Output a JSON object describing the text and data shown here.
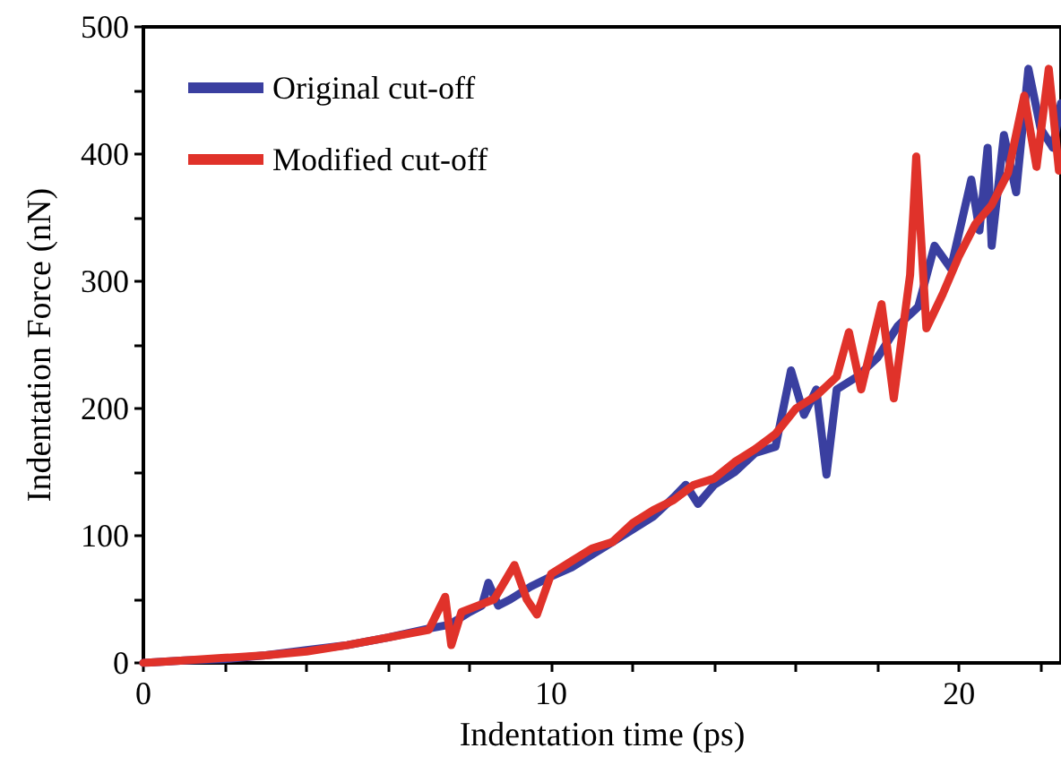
{
  "chart_data": {
    "type": "line",
    "xlabel": "Indentation time (ps)",
    "ylabel": "Indentation Force (nN)",
    "xlim": [
      0,
      22.5
    ],
    "xticks": [
      0,
      {
        "value": 2,
        "label": null
      },
      {
        "value": 4,
        "label": null
      },
      {
        "value": 6,
        "label": null
      },
      {
        "value": 8,
        "label": null
      },
      10,
      {
        "value": 12,
        "label": null
      },
      {
        "value": 14,
        "label": null
      },
      {
        "value": 16,
        "label": null
      },
      {
        "value": 18,
        "label": null
      },
      20,
      {
        "value": 22,
        "label": null
      }
    ],
    "ylim": [
      0,
      500
    ],
    "yticks": [
      0,
      {
        "value": 50,
        "label": null
      },
      100,
      {
        "value": 150,
        "label": null
      },
      200,
      {
        "value": 250,
        "label": null
      },
      300,
      {
        "value": 350,
        "label": null
      },
      400,
      {
        "value": 450,
        "label": null
      },
      500
    ],
    "grid": false,
    "legend": "top left",
    "marker": "none",
    "line_style": "solid",
    "series": [
      {
        "name": "Original cut-off",
        "color": "#3a3fa0",
        "x": [
          0,
          1,
          2,
          3,
          4,
          5,
          6,
          7,
          7.5,
          8,
          8.3,
          8.46,
          8.7,
          9,
          9.5,
          10,
          10.5,
          11,
          11.5,
          12,
          12.5,
          13,
          13.3,
          13.6,
          14,
          14.5,
          15,
          15.5,
          15.88,
          16.2,
          16.5,
          16.75,
          17,
          17.5,
          18,
          18.5,
          19,
          19.4,
          19.8,
          20.3,
          20.5,
          20.7,
          20.8,
          21.1,
          21.4,
          21.7,
          22,
          22.3,
          22.5
        ],
        "values": [
          0,
          2,
          3,
          6,
          10,
          14,
          20,
          27,
          30,
          40,
          45,
          63,
          45,
          50,
          60,
          68,
          75,
          85,
          95,
          105,
          115,
          130,
          140,
          125,
          140,
          150,
          165,
          170,
          230,
          195,
          215,
          148,
          215,
          225,
          240,
          265,
          280,
          328,
          310,
          380,
          340,
          405,
          328,
          415,
          370,
          467,
          420,
          405,
          440
        ]
      },
      {
        "name": "Modified cut-off",
        "color": "#e0322a",
        "x": [
          0,
          1,
          2,
          3,
          4,
          5,
          6,
          7,
          7.4,
          7.55,
          7.8,
          8.2,
          8.6,
          9.1,
          9.4,
          9.65,
          10,
          10.5,
          11,
          11.5,
          12,
          12.5,
          13,
          13.5,
          14,
          14.5,
          15,
          15.5,
          16,
          16.5,
          17,
          17.3,
          17.6,
          18.1,
          18.4,
          18.8,
          18.95,
          19.2,
          19.6,
          20,
          20.4,
          20.8,
          21.2,
          21.6,
          21.9,
          22.2,
          22.45
        ],
        "values": [
          0,
          2,
          4,
          6,
          9,
          14,
          20,
          26,
          52,
          14,
          40,
          45,
          50,
          77,
          50,
          38,
          70,
          80,
          90,
          95,
          110,
          120,
          128,
          140,
          145,
          158,
          168,
          180,
          200,
          210,
          225,
          260,
          215,
          282,
          208,
          305,
          398,
          263,
          290,
          320,
          345,
          360,
          385,
          446,
          390,
          467,
          387
        ]
      }
    ]
  }
}
